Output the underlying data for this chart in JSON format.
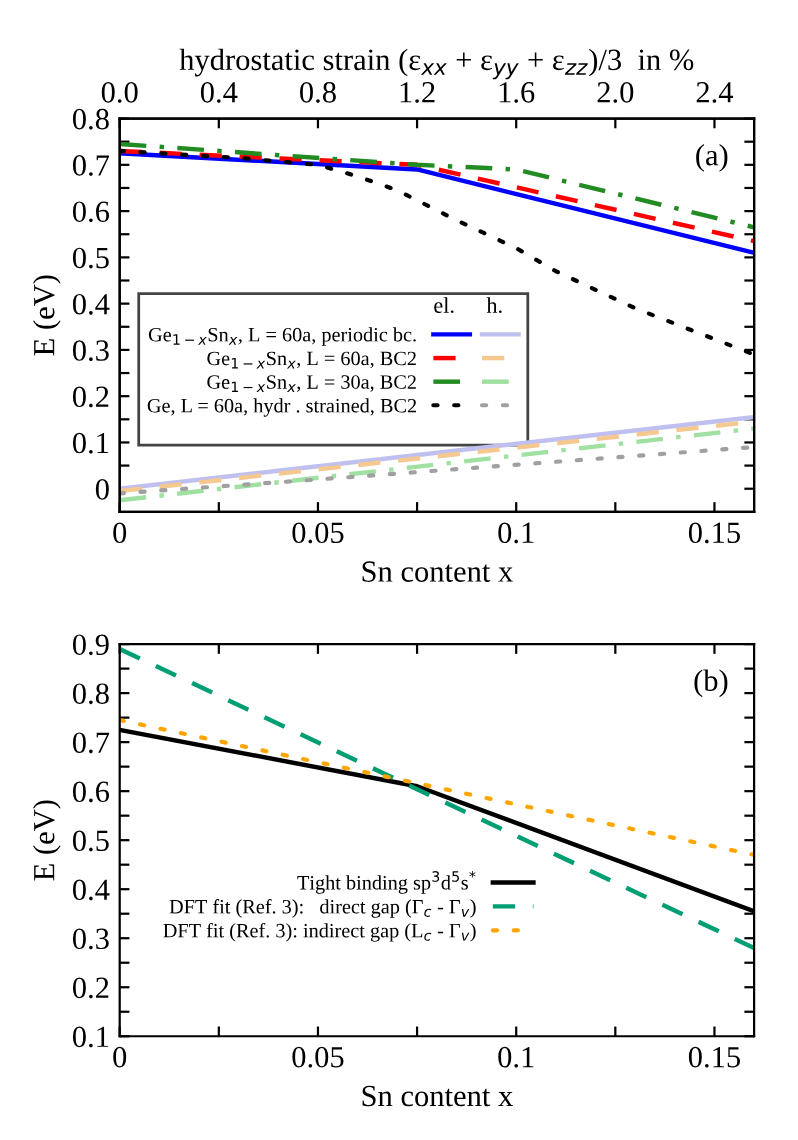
{
  "chart_data": [
    {
      "type": "line",
      "xlabel": "Sn content x",
      "ylabel": "E (eV)",
      "x2label": "hydrostatic strain (ε$_{xx}$ + ε$_{yy}$ + ε$_{zz}$)/3  in %",
      "xlim": [
        0,
        0.16
      ],
      "ylim": [
        -0.05,
        0.8
      ],
      "x2lim": [
        0,
        2.56
      ],
      "xticks": [
        {
          "value": 0,
          "label": "0"
        },
        {
          "value": 0.025,
          "label": null
        },
        0.05,
        {
          "value": 0.075,
          "label": null
        },
        0.1,
        {
          "value": 0.125,
          "label": null
        },
        0.15
      ],
      "yticks": [
        {
          "value": 0,
          "label": "0"
        },
        {
          "value": 0.05,
          "label": null
        },
        0.1,
        {
          "value": 0.15,
          "label": null
        },
        0.2,
        {
          "value": 0.25,
          "label": null
        },
        0.3,
        {
          "value": 0.35,
          "label": null
        },
        0.4,
        {
          "value": 0.45,
          "label": null
        },
        0.5,
        {
          "value": 0.55,
          "label": null
        },
        0.6,
        {
          "value": 0.65,
          "label": null
        },
        0.7,
        {
          "value": 0.75,
          "label": null
        },
        0.8
      ],
      "x2ticks": [
        {
          "value": 0,
          "label": "0.0"
        },
        0.4,
        0.8,
        1.2,
        1.6,
        {
          "value": 2,
          "label": "2.0"
        },
        2.4
      ],
      "grid": false,
      "legend": "left",
      "annotations": [
        "(a)",
        "el.",
        "h."
      ],
      "series": [
        {
          "name": "Ge$_{1−x}$Sn$_{x}$, L = 60a, periodic bc.",
          "color": "#0000ff",
          "line_style": "solid",
          "x": [
            0,
            0.075,
            0.16
          ],
          "values": [
            0.725,
            0.69,
            0.51
          ]
        },
        {
          "name": "Ge$_{1−x}$Sn$_{x}$, L = 60a, BC2",
          "color": "#ff0000",
          "line_style": "dashed",
          "x": [
            0,
            0.075,
            0.16
          ],
          "values": [
            0.73,
            0.7,
            0.535
          ]
        },
        {
          "name": "Ge$_{1−x}$Sn$_{x}$, L = 30a, BC2",
          "color": "#228b22",
          "line_style": "dashdot",
          "x": [
            0,
            0.075,
            0.1,
            0.16
          ],
          "values": [
            0.745,
            0.7,
            0.69,
            0.565
          ]
        },
        {
          "name": "Ge, L = 60a, hydr . strained, BC2",
          "color": "#000000",
          "line_style": "dotted",
          "x": [
            0,
            0.03,
            0.05,
            0.06,
            0.07,
            0.085,
            0.1,
            0.11,
            0.13,
            0.16
          ],
          "values": [
            0.73,
            0.715,
            0.7,
            0.675,
            0.645,
            0.58,
            0.52,
            0.47,
            0.39,
            0.29
          ]
        },
        {
          "color": "#c0c0f0",
          "line_style": "solid",
          "x": [
            0,
            0.16
          ],
          "values": [
            0.0,
            0.155
          ]
        },
        {
          "color": "#f5c890",
          "line_style": "dashed",
          "x": [
            0,
            0.16
          ],
          "values": [
            -0.005,
            0.145
          ]
        },
        {
          "color": "#a0e0a0",
          "line_style": "dashdot",
          "x": [
            0,
            0.16
          ],
          "values": [
            -0.025,
            0.13
          ]
        },
        {
          "color": "#a0a0a0",
          "line_style": "dotted",
          "x": [
            0,
            0.05,
            0.16
          ],
          "values": [
            -0.01,
            0.02,
            0.09
          ]
        }
      ]
    },
    {
      "type": "line",
      "xlabel": "Sn content x",
      "ylabel": "E (eV)",
      "xlim": [
        0,
        0.16
      ],
      "ylim": [
        0.1,
        0.9
      ],
      "xticks": [
        {
          "value": 0,
          "label": "0"
        },
        {
          "value": 0.025,
          "label": null
        },
        0.05,
        {
          "value": 0.075,
          "label": null
        },
        0.1,
        {
          "value": 0.125,
          "label": null
        },
        0.15
      ],
      "yticks": [
        0.1,
        {
          "value": 0.15,
          "label": null
        },
        0.2,
        {
          "value": 0.25,
          "label": null
        },
        0.3,
        {
          "value": 0.35,
          "label": null
        },
        0.4,
        {
          "value": 0.45,
          "label": null
        },
        0.5,
        {
          "value": 0.55,
          "label": null
        },
        0.6,
        {
          "value": 0.65,
          "label": null
        },
        0.7,
        {
          "value": 0.75,
          "label": null
        },
        0.8,
        {
          "value": 0.85,
          "label": null
        },
        0.9
      ],
      "grid": false,
      "legend": "bottom",
      "annotations": [
        "(b)"
      ],
      "series": [
        {
          "name": "Tight binding sp$^{3}$d$^{5}$s$^{*}$",
          "color": "#000000",
          "line_style": "solid",
          "x": [
            0,
            0.075,
            0.16
          ],
          "values": [
            0.725,
            0.61,
            0.355
          ]
        },
        {
          "name": "DFT fit (Ref. 3):   direct gap (Γ$_{c}$ - Γ$_{v}$)",
          "color": "#009e73",
          "line_style": "dashed",
          "x": [
            0,
            0.16
          ],
          "values": [
            0.89,
            0.28
          ]
        },
        {
          "name": "DFT fit (Ref. 3): indirect gap (L$_{c}$ - Γ$_{v}$)",
          "color": "#ffa500",
          "line_style": "dotted",
          "x": [
            0,
            0.16
          ],
          "values": [
            0.745,
            0.47
          ]
        }
      ]
    }
  ]
}
